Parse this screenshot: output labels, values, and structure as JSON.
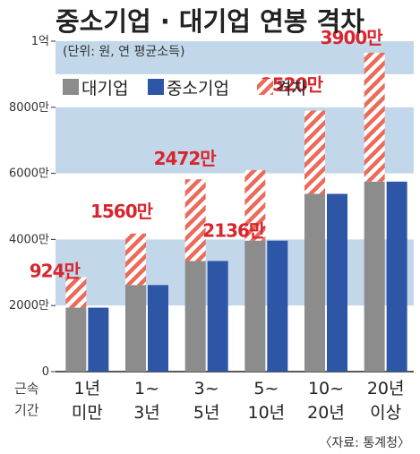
{
  "title": "중소기업 · 대기업 연봉 격차",
  "subtitle": "(단위: 원, 연 평균소득)",
  "source": "〈자료: 통계청〉",
  "x_axis_name": [
    "근속",
    "기간"
  ],
  "legend": [
    {
      "label": "대기업",
      "key": "large"
    },
    {
      "label": "중소기업",
      "key": "small"
    },
    {
      "label": "격차",
      "key": "gap"
    }
  ],
  "colors": {
    "large": "#8c8c8c",
    "small": "#2e56a6",
    "gap_base": "#ffffff",
    "gap_stripe": "#ec6a5a",
    "gap_text": "#d7262e",
    "band": "#c2d8ea"
  },
  "chart_data": {
    "type": "bar",
    "title": "중소기업 · 대기업 연봉 격차",
    "unit": "(단위: 원, 연 평균소득)",
    "categories": [
      [
        "1년",
        "미만"
      ],
      [
        "1~",
        "3년"
      ],
      [
        "3~",
        "5년"
      ],
      [
        "5~",
        "10년"
      ],
      [
        "10~",
        "20년"
      ],
      [
        "20년",
        "이상"
      ]
    ],
    "series": [
      {
        "name": "대기업",
        "values": [
          2860,
          4180,
          5820,
          6100,
          7900,
          9650
        ]
      },
      {
        "name": "중소기업",
        "values": [
          1936,
          2620,
          3348,
          3964,
          5380,
          5750
        ]
      },
      {
        "name": "격차",
        "values": [
          924,
          1560,
          2472,
          2136,
          2520,
          3900
        ]
      }
    ],
    "gap_labels": [
      "924만",
      "1560만",
      "2472만",
      "2136만",
      "2520만",
      "3900만"
    ],
    "y_ticks": [
      {
        "value": 0,
        "label": "0"
      },
      {
        "value": 2000,
        "label": "2000만"
      },
      {
        "value": 4000,
        "label": "4000만"
      },
      {
        "value": 6000,
        "label": "6000만"
      },
      {
        "value": 8000,
        "label": "8000만"
      },
      {
        "value": 10000,
        "label": "1억"
      }
    ],
    "ylim": [
      0,
      10000
    ]
  }
}
